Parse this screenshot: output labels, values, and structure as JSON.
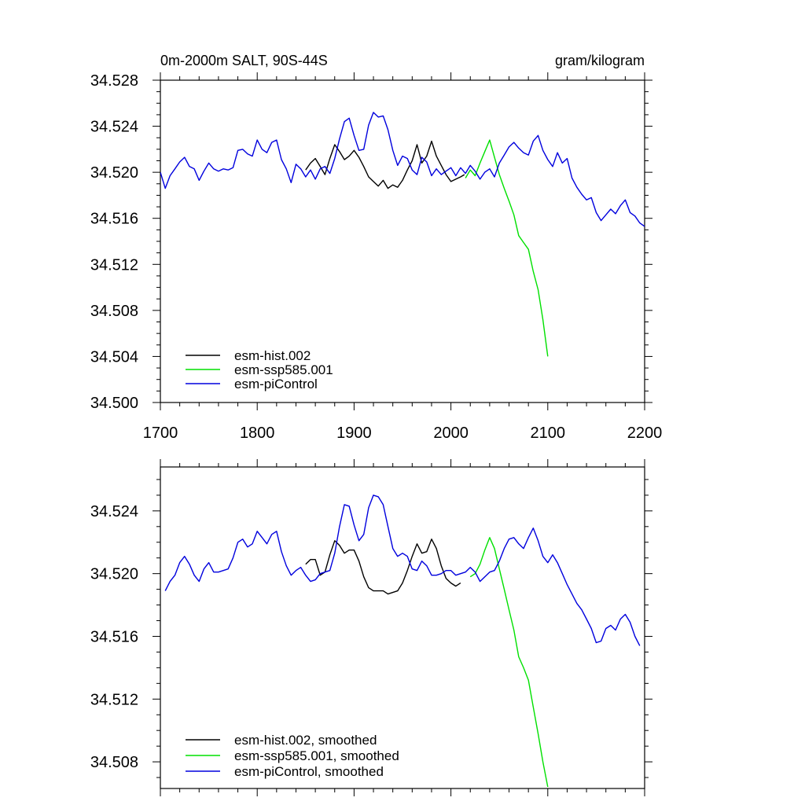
{
  "chart_data": [
    {
      "type": "line",
      "title_left": "0m-2000m SALT, 90S-44S",
      "title_right": "gram/kilogram",
      "xlabel": "",
      "ylabel": "",
      "xlim": [
        1700,
        2200
      ],
      "ylim": [
        34.5,
        34.528
      ],
      "xticks": [
        "1700",
        "1800",
        "1900",
        "2000",
        "2100",
        "2200"
      ],
      "yticks": [
        "34.500",
        "34.504",
        "34.508",
        "34.512",
        "34.516",
        "34.520",
        "34.524",
        "34.528"
      ],
      "legend": [
        "esm-hist.002",
        "esm-ssp585.001",
        "esm-piControl"
      ],
      "series": [
        {
          "name": "esm-hist.002",
          "color": "#000000",
          "x": [
            1850,
            1855,
            1860,
            1865,
            1870,
            1875,
            1880,
            1885,
            1890,
            1895,
            1900,
            1905,
            1910,
            1915,
            1920,
            1925,
            1930,
            1935,
            1940,
            1945,
            1950,
            1955,
            1960,
            1965,
            1970,
            1975,
            1980,
            1985,
            1990,
            1995,
            2000,
            2005,
            2010,
            2014
          ],
          "y": [
            34.5202,
            34.5208,
            34.5212,
            34.5205,
            34.5198,
            34.5212,
            34.5224,
            34.5218,
            34.5211,
            34.5214,
            34.5219,
            34.5213,
            34.5205,
            34.5196,
            34.5192,
            34.5188,
            34.5193,
            34.5186,
            34.5189,
            34.5187,
            34.5193,
            34.5202,
            34.521,
            34.5224,
            34.5208,
            34.5214,
            34.5227,
            34.5214,
            34.5206,
            34.5198,
            34.5192,
            34.5194,
            34.5196,
            34.5198
          ]
        },
        {
          "name": "esm-ssp585.001",
          "color": "#00e000",
          "x": [
            2015,
            2020,
            2025,
            2030,
            2035,
            2040,
            2045,
            2050,
            2055,
            2060,
            2065,
            2070,
            2075,
            2080,
            2085,
            2090,
            2095,
            2100
          ],
          "y": [
            34.5195,
            34.5202,
            34.5197,
            34.5208,
            34.5218,
            34.5228,
            34.5213,
            34.5198,
            34.5186,
            34.5175,
            34.5163,
            34.5145,
            34.5139,
            34.5133,
            34.5114,
            34.5098,
            34.5072,
            34.504
          ]
        },
        {
          "name": "esm-piControl",
          "color": "#0000dd",
          "x": [
            1700,
            1705,
            1710,
            1715,
            1720,
            1725,
            1730,
            1735,
            1740,
            1745,
            1750,
            1755,
            1760,
            1765,
            1770,
            1775,
            1780,
            1785,
            1790,
            1795,
            1800,
            1805,
            1810,
            1815,
            1820,
            1825,
            1830,
            1835,
            1840,
            1845,
            1850,
            1855,
            1860,
            1865,
            1870,
            1875,
            1880,
            1885,
            1890,
            1895,
            1900,
            1905,
            1910,
            1915,
            1920,
            1925,
            1930,
            1935,
            1940,
            1945,
            1950,
            1955,
            1960,
            1965,
            1970,
            1975,
            1980,
            1985,
            1990,
            1995,
            2000,
            2005,
            2010,
            2015,
            2020,
            2025,
            2030,
            2035,
            2040,
            2045,
            2050,
            2055,
            2060,
            2065,
            2070,
            2075,
            2080,
            2085,
            2090,
            2095,
            2100,
            2105,
            2110,
            2115,
            2120,
            2125,
            2130,
            2135,
            2140,
            2145,
            2150,
            2155,
            2160,
            2165,
            2170,
            2175,
            2180,
            2185,
            2190,
            2195,
            2200
          ],
          "y": [
            34.52,
            34.5186,
            34.5197,
            34.5203,
            34.5209,
            34.5213,
            34.5205,
            34.5203,
            34.5193,
            34.5201,
            34.5208,
            34.5203,
            34.5201,
            34.5203,
            34.5202,
            34.5204,
            34.5219,
            34.522,
            34.5216,
            34.5214,
            34.5228,
            34.522,
            34.5217,
            34.5226,
            34.5228,
            34.5211,
            34.5203,
            34.5191,
            34.5207,
            34.5203,
            34.5196,
            34.5202,
            34.5194,
            34.5203,
            34.5205,
            34.5199,
            34.5212,
            34.5229,
            34.5244,
            34.5247,
            34.5232,
            34.5219,
            34.522,
            34.5241,
            34.5252,
            34.5248,
            34.5249,
            34.5237,
            34.5219,
            34.5206,
            34.5214,
            34.5212,
            34.5202,
            34.5198,
            34.5213,
            34.5209,
            34.5197,
            34.5203,
            34.5198,
            34.5201,
            34.5204,
            34.5197,
            34.5204,
            34.5199,
            34.5206,
            34.5201,
            34.5194,
            34.52,
            34.5203,
            34.5196,
            34.5208,
            34.5215,
            34.5222,
            34.5226,
            34.5221,
            34.5217,
            34.5215,
            34.5227,
            34.5232,
            34.5219,
            34.5211,
            34.5205,
            34.5217,
            34.5208,
            34.5212,
            34.5195,
            34.5187,
            34.5181,
            34.5176,
            34.5178,
            34.5165,
            34.5158,
            34.5163,
            34.5168,
            34.5164,
            34.5171,
            34.5176,
            34.5165,
            34.5162,
            34.5156,
            34.5153
          ]
        }
      ]
    },
    {
      "type": "line",
      "title_left": "",
      "title_right": "",
      "xlabel": "",
      "ylabel": "",
      "xlim": [
        1700,
        2200
      ],
      "ylim": [
        34.5063,
        34.5268
      ],
      "xticks": [],
      "yticks": [
        "34.508",
        "34.512",
        "34.516",
        "34.520",
        "34.524"
      ],
      "legend": [
        "esm-hist.002, smoothed",
        "esm-ssp585.001, smoothed",
        "esm-piControl, smoothed"
      ],
      "series": [
        {
          "name": "esm-hist.002, smoothed",
          "color": "#000000",
          "x": [
            1850,
            1855,
            1860,
            1865,
            1870,
            1875,
            1880,
            1885,
            1890,
            1895,
            1900,
            1905,
            1910,
            1915,
            1920,
            1925,
            1930,
            1935,
            1940,
            1945,
            1950,
            1955,
            1960,
            1965,
            1970,
            1975,
            1980,
            1985,
            1990,
            1995,
            2000,
            2005,
            2010
          ],
          "y": [
            34.5206,
            34.5209,
            34.5209,
            34.5199,
            34.5201,
            34.5212,
            34.5221,
            34.5218,
            34.5213,
            34.5215,
            34.5215,
            34.5208,
            34.5198,
            34.5191,
            34.5189,
            34.5189,
            34.5189,
            34.5187,
            34.5188,
            34.5189,
            34.5194,
            34.5202,
            34.5211,
            34.5219,
            34.5213,
            34.5214,
            34.5222,
            34.5216,
            34.5205,
            34.5197,
            34.5194,
            34.5192,
            34.5194
          ]
        },
        {
          "name": "esm-ssp585.001, smoothed",
          "color": "#00e000",
          "x": [
            2020,
            2025,
            2030,
            2035,
            2040,
            2045,
            2050,
            2055,
            2060,
            2065,
            2070,
            2075,
            2080,
            2085,
            2090,
            2095,
            2100
          ],
          "y": [
            34.5198,
            34.52,
            34.5206,
            34.5215,
            34.5223,
            34.5216,
            34.5203,
            34.519,
            34.5177,
            34.5164,
            34.5147,
            34.514,
            34.5132,
            34.5115,
            34.5098,
            34.508,
            34.5064
          ]
        },
        {
          "name": "esm-piControl, smoothed",
          "color": "#0000dd",
          "x": [
            1705,
            1710,
            1715,
            1720,
            1725,
            1730,
            1735,
            1740,
            1745,
            1750,
            1755,
            1760,
            1765,
            1770,
            1775,
            1780,
            1785,
            1790,
            1795,
            1800,
            1805,
            1810,
            1815,
            1820,
            1825,
            1830,
            1835,
            1840,
            1845,
            1850,
            1855,
            1860,
            1865,
            1870,
            1875,
            1880,
            1885,
            1890,
            1895,
            1900,
            1905,
            1910,
            1915,
            1920,
            1925,
            1930,
            1935,
            1940,
            1945,
            1950,
            1955,
            1960,
            1965,
            1970,
            1975,
            1980,
            1985,
            1990,
            1995,
            2000,
            2005,
            2010,
            2015,
            2020,
            2025,
            2030,
            2035,
            2040,
            2045,
            2050,
            2055,
            2060,
            2065,
            2070,
            2075,
            2080,
            2085,
            2090,
            2095,
            2100,
            2105,
            2110,
            2115,
            2120,
            2125,
            2130,
            2135,
            2140,
            2145,
            2150,
            2155,
            2160,
            2165,
            2170,
            2175,
            2180,
            2185,
            2190,
            2195
          ],
          "y": [
            34.5189,
            34.5195,
            34.5199,
            34.5207,
            34.5211,
            34.5206,
            34.5199,
            34.5195,
            34.5203,
            34.5207,
            34.5201,
            34.5201,
            34.5202,
            34.5203,
            34.521,
            34.522,
            34.5222,
            34.5217,
            34.5219,
            34.5227,
            34.5223,
            34.5219,
            34.5225,
            34.5227,
            34.5214,
            34.5205,
            34.5199,
            34.5202,
            34.5204,
            34.5199,
            34.5195,
            34.5196,
            34.52,
            34.5201,
            34.5202,
            34.5213,
            34.523,
            34.5244,
            34.5243,
            34.5231,
            34.5221,
            34.5225,
            34.5242,
            34.525,
            34.5249,
            34.5244,
            34.523,
            34.5216,
            34.5211,
            34.5213,
            34.5211,
            34.5203,
            34.5202,
            34.5208,
            34.5205,
            34.5199,
            34.5199,
            34.52,
            34.5202,
            34.5202,
            34.5199,
            34.52,
            34.5201,
            34.5204,
            34.5201,
            34.5195,
            34.5198,
            34.5201,
            34.5202,
            34.5208,
            34.5216,
            34.5222,
            34.5223,
            34.5219,
            34.5216,
            34.5223,
            34.5229,
            34.5221,
            34.5211,
            34.5207,
            34.5212,
            34.5207,
            34.52,
            34.5193,
            34.5187,
            34.5181,
            34.5177,
            34.5171,
            34.5165,
            34.5156,
            34.5157,
            34.5165,
            34.5167,
            34.5164,
            34.5171,
            34.5174,
            34.5169,
            34.516,
            34.5154
          ]
        }
      ]
    }
  ]
}
